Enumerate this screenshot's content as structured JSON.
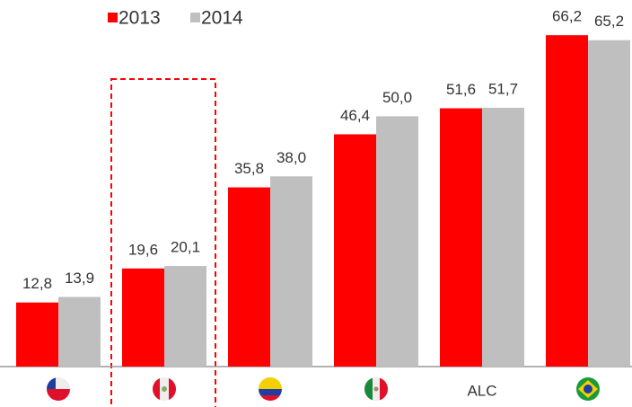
{
  "chart_data": {
    "type": "bar",
    "categories": [
      null,
      null,
      null,
      null,
      "ALC",
      null
    ],
    "series": [
      {
        "name": "2013",
        "color": "#ff0000",
        "values": [
          12.8,
          19.6,
          35.8,
          46.4,
          51.6,
          66.2
        ],
        "value_labels": [
          "12,8",
          "19,6",
          "35,8",
          "46,4",
          "51,6",
          "66,2"
        ]
      },
      {
        "name": "2014",
        "color": "#bfbfbf",
        "values": [
          13.9,
          20.1,
          38.0,
          50.0,
          51.7,
          65.2
        ],
        "value_labels": [
          "13,9",
          "20,1",
          "38,0",
          "50,0",
          "51,7",
          "65,2"
        ]
      }
    ],
    "ylim": [
      0,
      70
    ],
    "legend": "top-left"
  }
}
